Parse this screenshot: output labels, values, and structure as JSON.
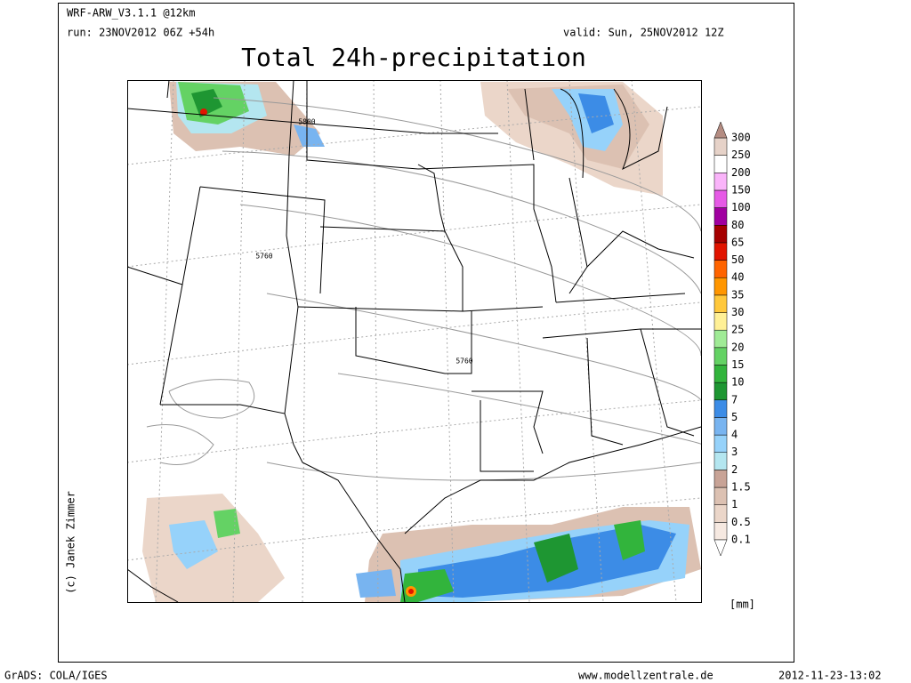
{
  "header": {
    "model": "WRF-ARW_V3.1.1 @12km",
    "run": "run: 23NOV2012 06Z +54h",
    "valid": "valid: Sun, 25NOV2012 12Z",
    "title": "Total 24h-precipitation"
  },
  "map": {
    "contour_labels": [
      "5800",
      "5760",
      "5760"
    ]
  },
  "colorbar": {
    "levels": [
      0.1,
      0.5,
      1,
      1.5,
      2,
      3,
      4,
      5,
      7,
      10,
      15,
      20,
      25,
      30,
      35,
      40,
      50,
      65,
      80,
      100,
      150,
      200,
      250,
      300
    ],
    "colors": [
      "#f6e9e1",
      "#ebd6c9",
      "#dcc1b2",
      "#c8a396",
      "#b4e6f0",
      "#96d2fa",
      "#78b4f0",
      "#3c8ce6",
      "#1e9632",
      "#32b43c",
      "#64d264",
      "#a0eb96",
      "#fff096",
      "#ffc83c",
      "#ff9600",
      "#ff6400",
      "#e11400",
      "#a50000",
      "#a000a0",
      "#e65ae6",
      "#fab4fa",
      "#ffffff",
      "#e6d2c8"
    ],
    "below_color": "#ffffff",
    "above_color": "#b48c82",
    "unit": "[mm]"
  },
  "credit": "(c) Janek Zimmer",
  "footer": {
    "left": "GrADS: COLA/IGES",
    "center": "www.modellzentrale.de",
    "right": "2012-11-23-13:02"
  }
}
